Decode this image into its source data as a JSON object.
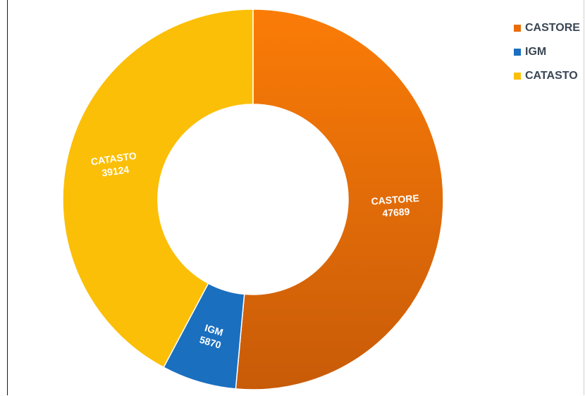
{
  "chart_data": {
    "type": "pie",
    "variant": "donut",
    "title": "",
    "categories": [
      "CASTORE",
      "IGM",
      "CATASTO"
    ],
    "values": [
      47689,
      5870,
      39124
    ],
    "colors": [
      "#e86c07",
      "#1a6fbf",
      "#fbbf07"
    ],
    "legend": {
      "position": "top-right",
      "entries": [
        "CASTORE",
        "IGM",
        "CATASTO"
      ]
    },
    "data_labels": [
      {
        "name": "CASTORE",
        "value": "47689"
      },
      {
        "name": "IGM",
        "value": "5870"
      },
      {
        "name": "CATASTO",
        "value": "39124"
      }
    ]
  }
}
